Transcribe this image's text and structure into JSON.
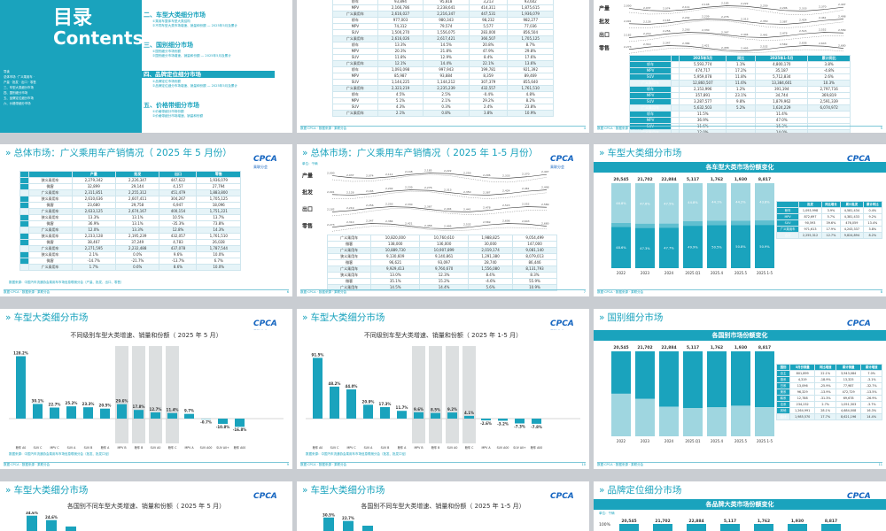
{
  "colors": {
    "teal": "#1aa3bd",
    "light_teal": "#9fd6e0",
    "grey": "#c5c9cc",
    "brand_blue": "#1565c0"
  },
  "logo": {
    "text": "CPCA",
    "sub": "乘联分会"
  },
  "footer_text": "数据·CPCA · 数据来源 · 乘联分会",
  "toc": {
    "title1": "目录",
    "title2": "Contents",
    "small_lines": [
      "导读",
      "总体市场 ·广义乘用车 ·",
      "产量 · 批发 · 出口 · 零售",
      "三、车型大类细分市场",
      "四、国别细分市场",
      "五、品牌定位细分市场",
      "六、价格带细分市场"
    ],
    "items": [
      {
        "label": "二、车型大类细分市场",
        "sub": [
          "①乘用车整体车型大类结构",
          "②不同车型大类市场增速、销量和份额 — 2025年5月及累计"
        ]
      },
      {
        "label": "三、国别细分市场",
        "sub": [
          "①国别细分市场份额",
          "②国别细分市场增速、销量和份额 — 2025年5月及累计"
        ]
      },
      {
        "label": "四、品牌定位细分市场",
        "sub": [
          "①品牌定位市场份额",
          "②品牌定位细分市场增速、销量和份额 — 2025年5月及累计"
        ]
      },
      {
        "label": "五、价格带细分市场",
        "sub": [
          "①价格带细分市场份额",
          "②价格带细分市场增速、销量和份额"
        ]
      }
    ]
  },
  "slide_r0c1": {
    "rows": [
      [
        "轿车",
        "93,894",
        "95,818",
        "3,213",
        "93,602"
      ],
      [
        "MPV",
        "2,166,786",
        "2,238,641",
        "414,311",
        "1,875,615"
      ],
      [
        "广义乘用车",
        "2,616,027",
        "2,216,347",
        "447,531",
        "1,936,079"
      ],
      [
        "轿车",
        "977,003",
        "980,343",
        "98,232",
        "982,277"
      ],
      [
        "MPV",
        "74,312",
        "79,574",
        "5,577",
        "77,036"
      ],
      [
        "SUV",
        "1,500,270",
        "1,556,075",
        "283,000",
        "856,504"
      ],
      [
        "广义乘用车",
        "2,616,026",
        "2,617,421",
        "366,507",
        "1,705,125"
      ],
      [
        "轿车",
        "13.3%",
        "14.5%",
        "20.8%",
        "8.7%"
      ],
      [
        "MPV",
        "20.3%",
        "21.8%",
        "47.9%",
        "29.8%"
      ],
      [
        "SUV",
        "11.8%",
        "12.9%",
        "8.4%",
        "17.6%"
      ],
      [
        "广义乘用车",
        "12.1%",
        "14.4%",
        "22.1%",
        "13.6%"
      ],
      [
        "轿车",
        "1,093,098",
        "997,943",
        "199,781",
        "921,392"
      ],
      [
        "MPV",
        "85,987",
        "93,884",
        "8,359",
        "89,469"
      ],
      [
        "SUV",
        "1,144,225",
        "1,144,212",
        "307,379",
        "855,640"
      ],
      [
        "广义乘用车",
        "2,323,219",
        "2,235,239",
        "432,557",
        "1,761,510"
      ],
      [
        "轿车",
        "4.5%",
        "2.5%",
        "-0.4%",
        "4.8%"
      ],
      [
        "MPV",
        "5.1%",
        "2.1%",
        "29.2%",
        "8.2%"
      ],
      [
        "SUV",
        "4.3%",
        "0.3%",
        "2.4%",
        "23.8%"
      ],
      [
        "广义乘用车",
        "2.1%",
        "0.8%",
        "3.8%",
        "10.9%"
      ]
    ]
  },
  "slide_r0c2": {
    "labels": [
      "产量",
      "批发",
      "出口",
      "零售"
    ],
    "headers": [
      "",
      "",
      "2025年5月",
      "同比",
      "2025年1-5月",
      "累计同比"
    ],
    "table_rows": [
      [
        "轿车",
        "",
        "5,593,774",
        "1.1%",
        "4,800,170",
        "3.8%"
      ],
      [
        "MPV",
        "",
        "474,717",
        "17.2%",
        "35,187",
        "-4.8%"
      ],
      [
        "SUV",
        "",
        "5,959,078",
        "11.8%",
        "5,712,834",
        "2.6%"
      ],
      [
        "广义乘用车",
        "",
        "12,860,507",
        "11.6%",
        "13,384,601",
        "10.3%"
      ],
      [
        "轿车",
        "",
        "2,153,996",
        "1.2%",
        "391,194",
        "2,797,716"
      ],
      [
        "MPV",
        "",
        "357,891",
        "23.1%",
        "34,744",
        "369,819"
      ],
      [
        "SUV",
        "",
        "3,287,577",
        "9.8%",
        "1,879,962",
        "2,591,339"
      ],
      [
        "广义乘用车",
        "",
        "5,632,503",
        "5.2%",
        "1,624,229",
        "6,074,972"
      ],
      [
        "轿车",
        "",
        "11.5%",
        "",
        "11.4%",
        ""
      ],
      [
        "MPV",
        "",
        "36.9%",
        "",
        "47.0%",
        ""
      ],
      [
        "SUV",
        "",
        "11.6%",
        "",
        "15.3%",
        ""
      ],
      [
        "广义乘用车",
        "",
        "12.0%",
        "",
        "14.0%",
        ""
      ]
    ]
  },
  "slide_r1c0": {
    "title": "总体市场：广义乘用车产销情况（ 2025 年 5 月份）",
    "headers": [
      "",
      "",
      "产量",
      "批发",
      "出口",
      "零售"
    ],
    "rows": [
      [
        "",
        "狭义乘用车",
        "2,279,342",
        "2,226,347",
        "447,622",
        "1,936,079"
      ],
      [
        "",
        "微客",
        "32,899",
        "29,144",
        "4,157",
        "27,794"
      ],
      [
        "",
        "广义乘用车",
        "2,311,851",
        "2,255,312",
        "451,479",
        "1,883,800"
      ],
      [
        "",
        "狭义乘用车",
        "2,610,636",
        "2,607,411",
        "304,267",
        "1,705,125"
      ],
      [
        "",
        "微客",
        "23,680",
        "29,758",
        "6,947",
        "18,096"
      ],
      [
        "",
        "广义乘用车",
        "2,633,125",
        "2,674,167",
        "400,154",
        "1,751,221"
      ],
      [
        "",
        "狭义乘用车",
        "13.3%",
        "13.1%",
        "10.5%",
        "13.7%"
      ],
      [
        "",
        "微客",
        "36.9%",
        "13.1%",
        "-35.3%",
        "73.8%"
      ],
      [
        "",
        "广义乘用车",
        "12.0%",
        "13.3%",
        "12.8%",
        "14.3%"
      ],
      [
        "",
        "狭义乘用车",
        "2,233,128",
        "2,195,239",
        "432,057",
        "1,761,510"
      ],
      [
        "",
        "微客",
        "38,467",
        "37,249",
        "4,783",
        "26,028"
      ],
      [
        "",
        "广义乘用车",
        "2,271,595",
        "2,232,488",
        "437,078",
        "1,787,544"
      ],
      [
        "",
        "狭义乘用车",
        "2.1%",
        "0.0%",
        "9.6%",
        "10.0%"
      ],
      [
        "",
        "微客",
        "-14.7%",
        "-21.7%",
        "-13.7%",
        "6.7%"
      ],
      [
        "",
        "广义乘用车",
        "1.7%",
        "0.6%",
        "8.6%",
        "10.0%"
      ]
    ],
    "note": "数据来源：中国汽车流通协会乘用车市场信息联席分会（产量、批发、出口、零售）"
  },
  "slide_r1c1": {
    "title": "总体市场：广义乘用车产销情况（ 2025 年 1-5 月份）",
    "unit": "单位：千辆",
    "labels": [
      "产量",
      "批发",
      "出口",
      "零售"
    ],
    "legend": [
      "2024",
      "2025"
    ],
    "table_rows": [
      [
        "广义乘用车",
        "10,820,000",
        "10,760,610",
        "1,988,825",
        "9,054,499"
      ],
      [
        "微客",
        "138,000",
        "136,000",
        "30,000",
        "147,000"
      ],
      [
        "广义乘用车",
        "10,889,730",
        "10,907,899",
        "2,019,174",
        "9,081,140"
      ],
      [
        "狭义乘用车",
        "9,130,609",
        "9,140,861",
        "1,291,380",
        "8,079,013"
      ],
      [
        "微客",
        "96,621",
        "93,097",
        "28,740",
        "86,446"
      ],
      [
        "广义乘用车",
        "9,929,413",
        "9,760,670",
        "1,556,080",
        "8,131,793"
      ],
      [
        "狭义乘用车",
        "13.0%",
        "12.3%",
        "8.4%",
        "8.3%"
      ],
      [
        "微客",
        "35.1%",
        "15.2%",
        "-4.6%",
        "55.9%"
      ],
      [
        "广义乘用车",
        "14.5%",
        "14.4%",
        "5.6%",
        "10.9%"
      ]
    ]
  },
  "slide_r1c2": {
    "title": "车型大类细分市场",
    "chart_title": "各车型大类市场份额变化",
    "unit": "单位：千辆",
    "row_labels": [
      "轿车",
      "MPV",
      "SUV"
    ],
    "side_headers": [
      "",
      "批发",
      "同比增长",
      "累计批发",
      "累计同比"
    ],
    "side_rows": [
      [
        "轿车",
        "1,093,998",
        "3.9%",
        "4,581,434",
        "0.4%"
      ],
      [
        "MPV",
        "872,697",
        "5.7%",
        "4,381,433",
        "9.2%"
      ],
      [
        "SUV",
        "90,593",
        "39.6%",
        "476,059",
        "13.4%"
      ],
      [
        "广义乘用车",
        "971,613",
        "17.9%",
        "4,243,337",
        "3.8%"
      ],
      [
        "合计",
        "2,255,312",
        "12.7%",
        "9,824,894",
        "8.2%"
      ]
    ]
  },
  "slide_r2c0": {
    "title": "车型大类细分市场",
    "chart_title": "不同级别车型大类增速、销量和份额（ 2025 年 5 月）",
    "note": "数据来源：中国汽车流通协会乘用车市场信息联席分会（批发、批发口径）"
  },
  "slide_r2c1": {
    "title": "车型大类细分市场",
    "chart_title": "不同级别车型大类增速、销量和份额（ 2025 年 1-5 月）",
    "note": "数据来源：中国汽车流通协会乘用车市场信息联席分会（批发、批发口径）"
  },
  "slide_r2c2": {
    "title": "国别细分市场",
    "chart_title": "各国别市场份额变化",
    "side_headers": [
      "国别",
      "5月份销量",
      "同比增速",
      "累计销量",
      "累计增速"
    ],
    "side_rows": [
      [
        "自主",
        "801,899",
        "22.1%",
        "3,943,084",
        "7.0%"
      ],
      [
        "德系",
        "4,319",
        "-18.9%",
        "13,325",
        "-3.1%"
      ],
      [
        "日系",
        "13,096",
        "-25.9%",
        "77,987",
        "-32.7%"
      ],
      [
        "美系",
        "96,329",
        "-13.9%",
        "472,729",
        "-13.5%"
      ],
      [
        "韩系",
        "12,788",
        "-31.3%",
        "69,678",
        "-26.9%"
      ],
      [
        "法系",
        "234,232",
        "2.7%",
        "1,051,303",
        "-3.7%"
      ],
      [
        "其他",
        "1,264,991",
        "28.1%",
        "4,684,008",
        "16.3%"
      ],
      [
        "合计",
        "1,985,570",
        "17.7%",
        "8,621,196",
        "14.4%"
      ]
    ]
  },
  "slide_r3c0": {
    "title": "车型大类细分市场",
    "chart_title": "各国别不同车型大类增速、销量和份额（ 2025 年 5 月）"
  },
  "slide_r3c1": {
    "title": "车型大类细分市场",
    "chart_title": "各国别不同车型大类增速、销量和份额（ 2025 年 1-5 月）"
  },
  "slide_r3c2": {
    "title": "品牌定位细分市场",
    "chart_title": "各品牌大类市场份额变化",
    "unit": "单位：千辆"
  },
  "chart_data": [
    {
      "type": "bar",
      "title": "各车型大类市场份额变化",
      "categories": [
        "2022",
        "2023",
        "2024",
        "2025.Q1",
        "2025.4",
        "2025.5",
        "2025.1-5"
      ],
      "totals": [
        20545,
        21702,
        22884,
        5117,
        1762,
        1930,
        8817
      ],
      "stack_order": [
        "SUV",
        "MPV",
        "轿车"
      ],
      "series": [
        {
          "name": "轿车",
          "values": [
            46.8,
            47.6,
            47.5,
            44.8,
            44.1,
            44.2,
            43.8
          ],
          "labels": [
            "46.8%",
            "47.6%",
            "47.5%",
            "44.8%",
            "44.1%",
            "44.2%",
            "43.8%"
          ]
        },
        {
          "name": "MPV",
          "values": [
            4.6,
            5.1,
            4.8,
            5.3,
            5.4,
            5.0,
            5.3
          ],
          "labels": [],
          "unit": "%"
        },
        {
          "name": "SUV",
          "values": [
            48.6,
            47.3,
            47.7,
            49.9,
            50.5,
            50.8,
            50.9
          ],
          "labels": [
            "48.6%",
            "47.3%",
            "47.7%",
            "49.9%",
            "50.5%",
            "50.8%",
            "50.9%"
          ]
        }
      ],
      "ylabel": "份额",
      "ylim": [
        0,
        100
      ]
    },
    {
      "type": "bar",
      "title": "不同级别车型大类增速、销量和份额（ 2025 年 5 月）",
      "categories": [
        "轿车 A0",
        "SUV C",
        "MPV C",
        "SUV A",
        "SUV B",
        "轿车 A",
        "MPV B",
        "轿车 B",
        "SUV A0",
        "轿车 C",
        "MPV A",
        "SUV A00",
        "SUV A0+",
        "轿车 A00"
      ],
      "values": [
        128.2,
        30.1,
        22.7,
        25.2,
        23.3,
        20.5,
        29.6,
        17.8,
        12.7,
        11.4,
        9.7,
        -0.7,
        -10.8,
        -16.8
      ],
      "labels": [
        "128.2%",
        "30.1%",
        "22.7%",
        "25.2%",
        "23.3%",
        "20.5%",
        "29.6%",
        "17.8%",
        "12.7%",
        "11.4%",
        "9.7%",
        "-0.7%",
        "-10.8%",
        "-16.8%"
      ],
      "ylim": [
        -30,
        140
      ]
    },
    {
      "type": "bar",
      "title": "不同级别车型大类增速、销量和份额（ 2025 年 1-5 月）",
      "categories": [
        "轿车 A0",
        "SUV C",
        "MPV C",
        "SUV A",
        "SUV B",
        "轿车 A",
        "MPV B",
        "轿车 B",
        "SUV A0",
        "轿车 C",
        "MPV A",
        "SUV A00",
        "SUV A0+",
        "轿车 A00"
      ],
      "values": [
        91.5,
        48.2,
        44.0,
        20.9,
        17.3,
        11.7,
        9.6,
        8.5,
        9.2,
        4.1,
        -2.6,
        -3.2,
        -7.3,
        -7.8
      ],
      "labels": [
        "91.5%",
        "48.2%",
        "44.0%",
        "20.9%",
        "17.3%",
        "11.7%",
        "9.6%",
        "8.5%",
        "9.2%",
        "4.1%",
        "-2.6%",
        "-3.2%",
        "-7.3%",
        "-7.8%"
      ],
      "ylim": [
        -30,
        110
      ]
    },
    {
      "type": "bar",
      "title": "各国别市场份额变化",
      "categories": [
        "2022",
        "2023",
        "2024",
        "2025.Q1",
        "2025.4",
        "2025.5",
        "2025.1-5"
      ],
      "totals": [
        20545,
        21702,
        22884,
        5117,
        1762,
        1930,
        8817
      ],
      "series": [
        {
          "name": "自主",
          "values": [
            49.9,
            56.0,
            65.2,
            66.9,
            65.9,
            64.0,
            65.8
          ]
        },
        {
          "name": "其他",
          "values": [
            50.1,
            44.0,
            34.8,
            33.1,
            34.1,
            36.0,
            34.2
          ]
        }
      ],
      "ylim": [
        0,
        100
      ]
    },
    {
      "type": "bar",
      "title": "各国别不同车型大类增速、销量和份额（ 2025 年 5 月）",
      "categories": [
        "A",
        "B",
        "C"
      ],
      "values": [
        34.6,
        24.6,
        10.2
      ],
      "labels": [
        "34.6%",
        "24.6%",
        ""
      ]
    },
    {
      "type": "bar",
      "title": "各国别不同车型大类增速、销量和份额（ 2025 年 1-5 月）",
      "categories": [
        "A",
        "B",
        "C"
      ],
      "values": [
        30.5,
        22.7,
        12.0
      ],
      "labels": [
        "30.5%",
        "22.7%",
        ""
      ]
    },
    {
      "type": "bar",
      "title": "各品牌大类市场份额变化",
      "categories": [
        "2022",
        "2023",
        "2024",
        "2025.Q1",
        "2025.4",
        "2025.5",
        "2025.1-5"
      ],
      "totals": [
        20545,
        21702,
        22884,
        5117,
        1762,
        1930,
        8817
      ],
      "axis_label": "100%"
    }
  ]
}
